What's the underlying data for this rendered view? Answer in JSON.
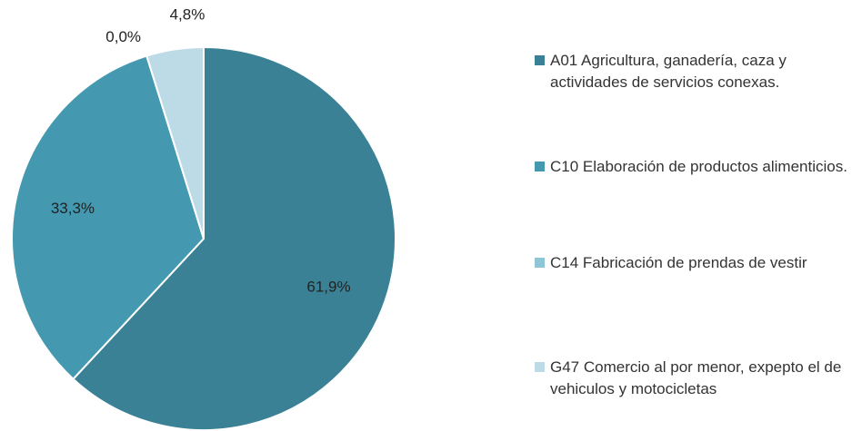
{
  "chart_data": {
    "type": "pie",
    "categories": [
      "A01 Agricultura, ganadería, caza y actividades de servicios conexas.",
      "C10 Elaboración de productos alimenticios.",
      "C14 Fabricación de prendas de vestir",
      "G47 Comercio al por menor, expepto el de vehiculos y motocicletas"
    ],
    "values": [
      61.9,
      33.3,
      0.0,
      4.8
    ],
    "value_labels": [
      "61,9%",
      "33,3%",
      "0,0%",
      "4,8%"
    ],
    "colors": [
      "#3a8196",
      "#4499b0",
      "#8ec6d6",
      "#bddbe6"
    ],
    "legend": "right"
  }
}
